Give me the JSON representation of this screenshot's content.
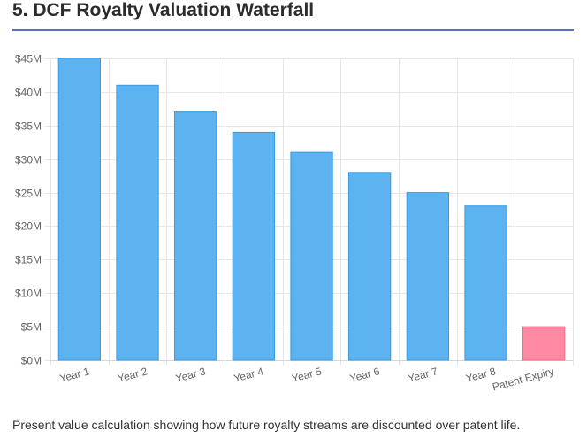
{
  "page": {
    "title": "5. DCF Royalty Valuation Waterfall",
    "caption": "Present value calculation showing how future royalty streams are discounted over patent life."
  },
  "colors": {
    "title_rule": "#5b6fc0",
    "bar_fill": "#5cb3ef",
    "bar_stroke": "#3a9ae0",
    "expiry_fill": "#ff88a2",
    "expiry_stroke": "#f06e8a",
    "grid": "#e6e6e6",
    "axis_text": "#666666"
  },
  "chart_data": {
    "type": "bar",
    "categories": [
      "Year 1",
      "Year 2",
      "Year 3",
      "Year 4",
      "Year 5",
      "Year 6",
      "Year 7",
      "Year 8",
      "Patent Expiry"
    ],
    "values": [
      45,
      41,
      37,
      34,
      31,
      28,
      25,
      23,
      5
    ],
    "unit": "$M",
    "ylim": [
      0,
      45
    ],
    "yticks": [
      0,
      5,
      10,
      15,
      20,
      25,
      30,
      35,
      40,
      45
    ],
    "ytick_labels": [
      "$0M",
      "$5M",
      "$10M",
      "$15M",
      "$20M",
      "$25M",
      "$30M",
      "$35M",
      "$40M",
      "$45M"
    ],
    "grid": true,
    "legend": "none",
    "highlight_category": "Patent Expiry"
  }
}
